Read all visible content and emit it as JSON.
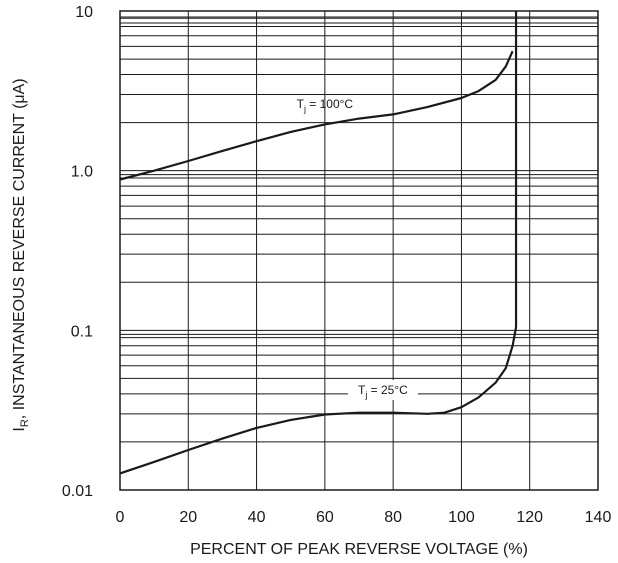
{
  "chart_data": {
    "type": "line",
    "title": "",
    "xlabel": "PERCENT OF PEAK REVERSE VOLTAGE (%)",
    "ylabel_main": "INSTANTANEOUS REVERSE CURRENT (μA)",
    "ylabel_symbol": "I",
    "ylabel_subscript": "R",
    "ylabel_separator": ",",
    "x_scale": "linear",
    "y_scale": "log",
    "xlim": [
      0,
      140
    ],
    "ylim": [
      0.01,
      10
    ],
    "x_ticks": [
      0,
      20,
      40,
      60,
      80,
      100,
      120,
      140
    ],
    "x_tick_labels": [
      "0",
      "20",
      "40",
      "60",
      "80",
      "100",
      "120",
      "140"
    ],
    "y_ticks": [
      0.01,
      0.1,
      1.0,
      10
    ],
    "y_tick_labels": [
      "0.01",
      "0.1",
      "1.0",
      "10"
    ],
    "grid": true,
    "series": [
      {
        "name": "Tj = 100°C",
        "label_main": "T",
        "label_sub": "j",
        "label_rest": " = 100°C",
        "x": [
          0,
          10,
          20,
          30,
          40,
          50,
          60,
          70,
          80,
          90,
          100,
          105,
          110,
          113,
          115
        ],
        "y": [
          0.88,
          1.0,
          1.15,
          1.33,
          1.53,
          1.75,
          1.95,
          2.12,
          2.25,
          2.5,
          2.85,
          3.15,
          3.7,
          4.5,
          5.6
        ]
      },
      {
        "name": "Tj = 25°C",
        "label_main": "T",
        "label_sub": "j",
        "label_rest": " = 25°C",
        "x": [
          0,
          10,
          20,
          30,
          40,
          50,
          60,
          70,
          80,
          90,
          95,
          100,
          105,
          110,
          113,
          115,
          116
        ],
        "y": [
          0.0127,
          0.015,
          0.0178,
          0.021,
          0.0245,
          0.0275,
          0.0297,
          0.0305,
          0.0305,
          0.03,
          0.0305,
          0.033,
          0.038,
          0.047,
          0.058,
          0.08,
          0.105
        ]
      }
    ],
    "breakdown_x": 116,
    "colors": {
      "curve": "#1a1a1a",
      "grid": "#1a1a1a"
    }
  }
}
